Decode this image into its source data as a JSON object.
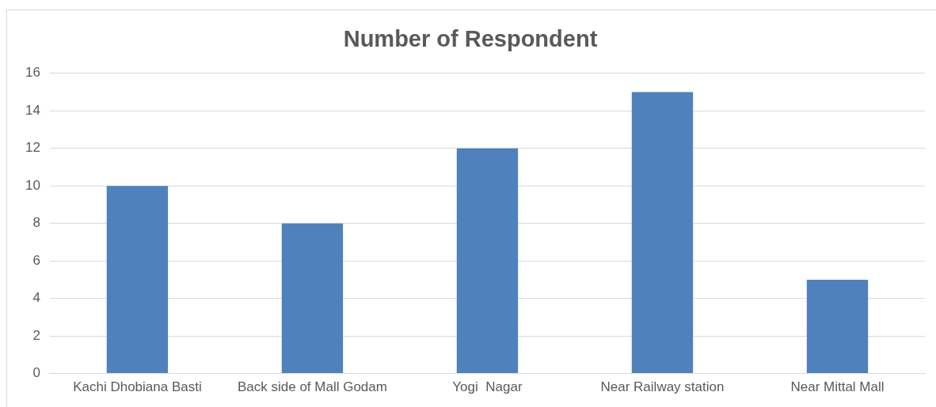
{
  "chart_data": {
    "type": "bar",
    "title": "Number of Respondent",
    "categories": [
      "Kachi Dhobiana Basti",
      "Back side of Mall Godam",
      "Yogi  Nagar",
      "Near Railway station",
      "Near Mittal Mall"
    ],
    "values": [
      10,
      8,
      12,
      15,
      5
    ],
    "color": "#4f81bd",
    "ylim": [
      0,
      16
    ],
    "yticks": [
      0,
      2,
      4,
      6,
      8,
      10,
      12,
      14,
      16
    ],
    "grid": "y",
    "legend": false
  }
}
